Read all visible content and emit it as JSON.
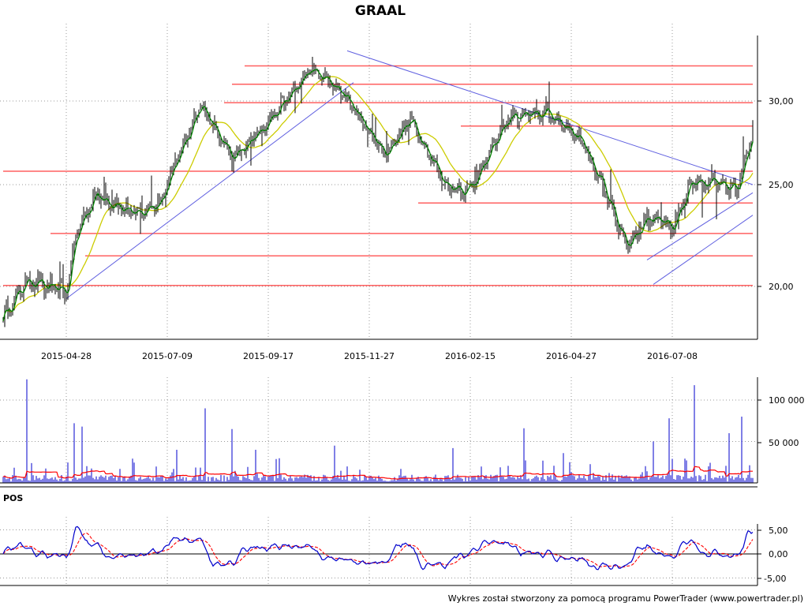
{
  "chart_data": [
    {
      "type": "candlestick",
      "title": "GRAAL",
      "x_tick_labels": [
        "2015-04-28",
        "2015-07-09",
        "2015-09-17",
        "2015-11-27",
        "2016-02-15",
        "2016-04-27",
        "2016-07-08"
      ],
      "y_tick_labels": [
        "20,00",
        "25,00",
        "30,00"
      ],
      "y_ticks": [
        20,
        25,
        30
      ],
      "ylim": [
        17.8,
        31.8
      ],
      "grid": true,
      "price_path_keypoints": [
        {
          "i": 0,
          "price": 18.5
        },
        {
          "i": 15,
          "price": 20.3
        },
        {
          "i": 40,
          "price": 19.7
        },
        {
          "i": 46,
          "price": 22.5
        },
        {
          "i": 58,
          "price": 24.5
        },
        {
          "i": 85,
          "price": 23.5
        },
        {
          "i": 100,
          "price": 24.2
        },
        {
          "i": 125,
          "price": 29.8
        },
        {
          "i": 145,
          "price": 26.5
        },
        {
          "i": 170,
          "price": 29.0
        },
        {
          "i": 195,
          "price": 31.9
        },
        {
          "i": 215,
          "price": 30.5
        },
        {
          "i": 242,
          "price": 26.8
        },
        {
          "i": 258,
          "price": 28.9
        },
        {
          "i": 280,
          "price": 25.0
        },
        {
          "i": 295,
          "price": 24.7
        },
        {
          "i": 305,
          "price": 26.3
        },
        {
          "i": 320,
          "price": 29.0
        },
        {
          "i": 345,
          "price": 29.3
        },
        {
          "i": 365,
          "price": 27.8
        },
        {
          "i": 385,
          "price": 24.0
        },
        {
          "i": 395,
          "price": 22.0
        },
        {
          "i": 410,
          "price": 23.5
        },
        {
          "i": 425,
          "price": 22.8
        },
        {
          "i": 435,
          "price": 25.0
        },
        {
          "i": 450,
          "price": 25.3
        },
        {
          "i": 465,
          "price": 24.8
        },
        {
          "i": 475,
          "price": 28.3
        }
      ],
      "horizontal_levels": [
        {
          "price": 32.1,
          "from_i": 153,
          "to_i": 475
        },
        {
          "price": 31.0,
          "from_i": 145,
          "to_i": 475
        },
        {
          "price": 29.9,
          "from_i": 140,
          "to_i": 475
        },
        {
          "price": 28.5,
          "from_i": 290,
          "to_i": 475
        },
        {
          "price": 25.8,
          "from_i": 0,
          "to_i": 475
        },
        {
          "price": 24.1,
          "from_i": 263,
          "to_i": 475
        },
        {
          "price": 22.6,
          "from_i": 30,
          "to_i": 475
        },
        {
          "price": 21.5,
          "from_i": 52,
          "to_i": 475
        },
        {
          "price": 20.05,
          "from_i": 0,
          "to_i": 475
        }
      ],
      "trend_lines": [
        {
          "from": {
            "i": 40,
            "price": 19.4
          },
          "to": {
            "i": 222,
            "price": 31.1
          }
        },
        {
          "from": {
            "i": 218,
            "price": 33.0
          },
          "to": {
            "i": 475,
            "price": 25.0
          }
        },
        {
          "from": {
            "i": 408,
            "price": 21.3
          },
          "to": {
            "i": 475,
            "price": 24.6
          }
        },
        {
          "from": {
            "i": 412,
            "price": 20.1
          },
          "to": {
            "i": 475,
            "price": 23.5
          }
        }
      ],
      "ma_fast_period": 4,
      "ma_slow_period": 22,
      "colors": {
        "candle": "#000000",
        "ma_fast": "#008000",
        "ma_slow": "#cccc00",
        "level": "#ff6060",
        "trend": "#6060e0",
        "grid": "#999999"
      }
    },
    {
      "type": "bar",
      "y_tick_labels": [
        "50 000",
        "100 000"
      ],
      "y_ticks": [
        50000,
        100000
      ],
      "ylim": [
        0,
        138000
      ],
      "spikes": [
        {
          "i": 15,
          "value": 125000
        },
        {
          "i": 45,
          "value": 72000
        },
        {
          "i": 50,
          "value": 68000
        },
        {
          "i": 110,
          "value": 40000
        },
        {
          "i": 128,
          "value": 90000
        },
        {
          "i": 145,
          "value": 65000
        },
        {
          "i": 160,
          "value": 40000
        },
        {
          "i": 210,
          "value": 45000
        },
        {
          "i": 285,
          "value": 42000
        },
        {
          "i": 330,
          "value": 66000
        },
        {
          "i": 355,
          "value": 36000
        },
        {
          "i": 412,
          "value": 50000
        },
        {
          "i": 422,
          "value": 78000
        },
        {
          "i": 438,
          "value": 118000
        },
        {
          "i": 460,
          "value": 60000
        },
        {
          "i": 468,
          "value": 80000
        }
      ],
      "baseline_volume": 6000,
      "colors": {
        "bar": "#0000cc",
        "ma": "#ff0000"
      }
    },
    {
      "type": "line",
      "panel_label": "POS",
      "y_tick_labels": [
        "5,00",
        "0,00",
        "-5,00"
      ],
      "y_ticks": [
        5,
        0,
        -5
      ],
      "ylim": [
        -6,
        6.5
      ],
      "series_derived_from": "price",
      "colors": {
        "line": "#0000cc",
        "signal": "#ff0000",
        "zero": "#000000"
      }
    }
  ],
  "footer": {
    "credit": "Wykres został stworzony za pomocą programu PowerTrader (www.powertrader.pl)"
  }
}
